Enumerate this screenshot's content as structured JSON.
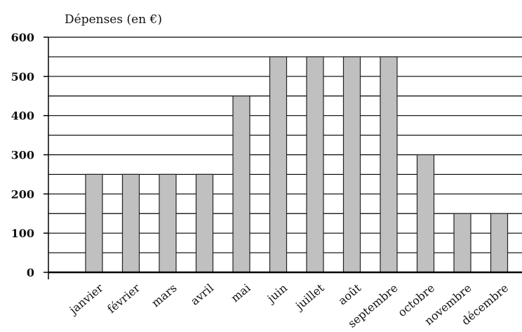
{
  "chart_data": {
    "type": "bar",
    "ylabel": "Dépenses (en €)",
    "xlabel": "",
    "categories": [
      "janvier",
      "février",
      "mars",
      "avril",
      "mai",
      "juin",
      "juillet",
      "août",
      "septembre",
      "octobre",
      "novembre",
      "décembre"
    ],
    "values": [
      250,
      250,
      250,
      250,
      450,
      550,
      550,
      550,
      550,
      300,
      150,
      150
    ],
    "ylim": [
      0,
      600
    ],
    "yticks": [
      "0",
      "100",
      "200",
      "300",
      "400",
      "500",
      "600"
    ],
    "minor_grid_step": 50,
    "grid": true,
    "bar_color": "#c0c0c0",
    "bar_edge_color": "#222222"
  }
}
